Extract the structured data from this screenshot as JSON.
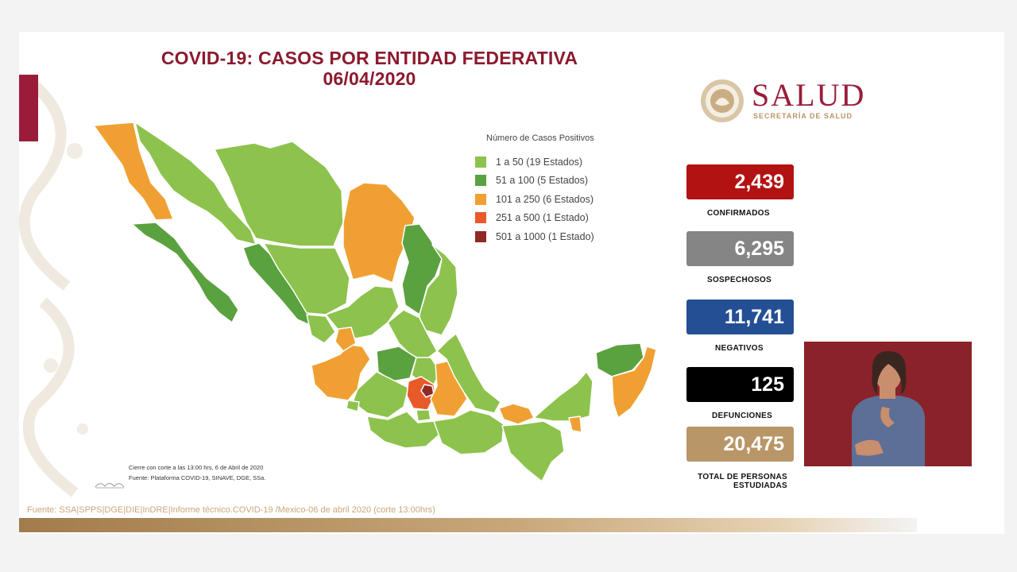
{
  "title": {
    "line1": "COVID-19: CASOS POR ENTIDAD FEDERATIVA",
    "line2": "06/04/2020"
  },
  "logo": {
    "name": "SALUD",
    "subtitle": "SECRETARÍA DE SALUD"
  },
  "legend": {
    "title": "Número de Casos Positivos",
    "items": [
      {
        "label": "1 a   50  (19 Estados)",
        "color": "#8dc24d"
      },
      {
        "label": "51 a  100  (5 Estados)",
        "color": "#5aa13f"
      },
      {
        "label": "101 a  250  (6 Estados)",
        "color": "#f0a032"
      },
      {
        "label": "251 a  500  (1 Estado)",
        "color": "#e85a2a"
      },
      {
        "label": "501 a 1000  (1 Estado)",
        "color": "#8e2b24"
      }
    ]
  },
  "notes": {
    "cierre": "Cierre con corte a las 13:00 hrs, 6 de Abril de 2020",
    "fuente": "Fuente: Plataforma COVID-19, SINAVE, DGE, SSa."
  },
  "footer_source": "Fuente: SSA|SPPS|DGE|DIE|InDRE|Informe técnico.COVID-19 /Mexico-06 de abril 2020 (corte 13:00hrs)",
  "stats": {
    "confirmados": {
      "value": "2,439",
      "label": "CONFIRMADOS",
      "color": "#b31212"
    },
    "sospechosos": {
      "value": "6,295",
      "label": "SOSPECHOSOS",
      "color": "#858585"
    },
    "negativos": {
      "value": "11,741",
      "label": "NEGATIVOS",
      "color": "#244f94"
    },
    "defunciones": {
      "value": "125",
      "label": "DEFUNCIONES",
      "color": "#000000"
    },
    "total": {
      "value": "20,475",
      "label_line1": "TOTAL DE PERSONAS",
      "label_line2": "ESTUDIADAS",
      "color": "#b89667"
    }
  },
  "map_colors": {
    "low": "#8dc24d",
    "mid": "#5aa13f",
    "high": "#f0a032",
    "higher": "#e85a2a",
    "highest": "#8e2b24",
    "border": "#ffffff"
  }
}
